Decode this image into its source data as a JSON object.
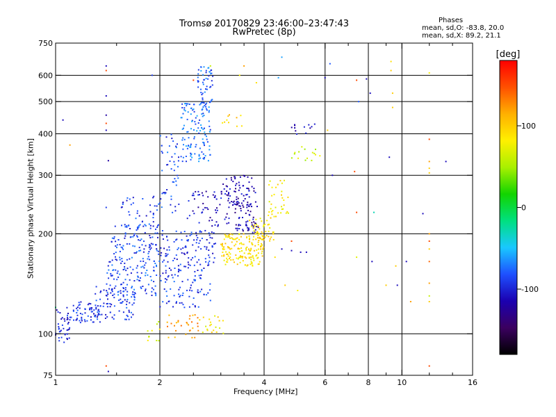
{
  "title": "Tromsø 20170829 23:46:00–23:47:43",
  "subtitle": "RwPretec (8p)",
  "phases": {
    "heading": "Phases",
    "o_line": "mean, sd,O: -83.8, 20.0",
    "x_line": "mean, sd,X:  89.2, 21.1"
  },
  "colorbar": {
    "label": "[deg]",
    "range": [
      -180,
      180
    ],
    "ticks": [
      {
        "value": 100,
        "label": "100"
      },
      {
        "value": 0,
        "label": "0"
      },
      {
        "value": -100,
        "label": "-100"
      }
    ],
    "stops": [
      "#000000",
      "#3b0060",
      "#1b00b0",
      "#1e50ff",
      "#19c8ff",
      "#00e080",
      "#12d400",
      "#a8f000",
      "#fff000",
      "#ffb000",
      "#ff5000",
      "#ff0000"
    ]
  },
  "chart_data": {
    "type": "scatter",
    "title": "Tromsø 20170829 23:46:00–23:47:43",
    "subtitle": "RwPretec (8p)",
    "xlabel": "Frequency [MHz]",
    "ylabel": "Stationary phase Virtual Height [km]",
    "xscale": "log",
    "yscale": "log",
    "xlim": [
      1,
      16
    ],
    "ylim": [
      75,
      750
    ],
    "xticks": [
      1,
      2,
      4,
      6,
      8,
      10,
      16
    ],
    "xtick_labels": [
      "1",
      "2",
      "4",
      "6",
      "8",
      "10",
      "16"
    ],
    "xminor": [
      1.5,
      2.5,
      3,
      3.5,
      5,
      7,
      9,
      12,
      14
    ],
    "yticks": [
      75,
      100,
      200,
      300,
      400,
      500,
      600,
      750
    ],
    "ytick_labels": [
      "75",
      "100",
      "200",
      "300",
      "400",
      "500",
      "600",
      "750"
    ],
    "grid_x": [
      2,
      4,
      6,
      8,
      10
    ],
    "grid_y": [
      100,
      200,
      300,
      400,
      500,
      600
    ],
    "color_axis": "phase [deg]",
    "clusters": [
      {
        "f": [
          1.0,
          1.1
        ],
        "h": [
          92,
          120
        ],
        "phase": -100,
        "n": 40
      },
      {
        "f": [
          1.1,
          1.35
        ],
        "h": [
          108,
          125
        ],
        "phase": -95,
        "n": 60
      },
      {
        "f": [
          1.3,
          1.7
        ],
        "h": [
          110,
          140
        ],
        "phase": -90,
        "n": 90
      },
      {
        "f": [
          1.4,
          2.0
        ],
        "h": [
          130,
          170
        ],
        "phase": -85,
        "n": 110
      },
      {
        "f": [
          1.45,
          2.0
        ],
        "h": [
          165,
          215
        ],
        "phase": -88,
        "n": 100
      },
      {
        "f": [
          1.55,
          2.0
        ],
        "h": [
          210,
          260
        ],
        "phase": -90,
        "n": 40
      },
      {
        "f": [
          2.0,
          2.8
        ],
        "h": [
          120,
          160
        ],
        "phase": -90,
        "n": 90
      },
      {
        "f": [
          2.0,
          2.9
        ],
        "h": [
          160,
          205
        ],
        "phase": -92,
        "n": 110
      },
      {
        "f": [
          2.0,
          2.3
        ],
        "h": [
          230,
          400
        ],
        "phase": -85,
        "n": 50
      },
      {
        "f": [
          2.3,
          2.8
        ],
        "h": [
          330,
          500
        ],
        "phase": -75,
        "n": 130
      },
      {
        "f": [
          2.55,
          2.85
        ],
        "h": [
          480,
          640
        ],
        "phase": -78,
        "n": 50
      },
      {
        "f": [
          2.4,
          3.2
        ],
        "h": [
          210,
          270
        ],
        "phase": -110,
        "n": 60
      },
      {
        "f": [
          3.0,
          3.8
        ],
        "h": [
          240,
          300
        ],
        "phase": -115,
        "n": 70
      },
      {
        "f": [
          3.3,
          3.85
        ],
        "h": [
          200,
          250
        ],
        "phase": -118,
        "n": 60
      },
      {
        "f": [
          3.0,
          4.0
        ],
        "h": [
          160,
          200
        ],
        "phase": 90,
        "n": 160
      },
      {
        "f": [
          3.6,
          4.3
        ],
        "h": [
          190,
          225
        ],
        "phase": 90,
        "n": 50
      },
      {
        "f": [
          4.1,
          4.7
        ],
        "h": [
          225,
          290
        ],
        "phase": 85,
        "n": 35
      },
      {
        "f": [
          2.1,
          2.6
        ],
        "h": [
          97,
          115
        ],
        "phase": 120,
        "n": 30
      },
      {
        "f": [
          2.6,
          3.1
        ],
        "h": [
          100,
          115
        ],
        "phase": 85,
        "n": 20
      },
      {
        "f": [
          1.8,
          2.0
        ],
        "h": [
          95,
          110
        ],
        "phase": 70,
        "n": 10
      },
      {
        "f": [
          3.0,
          3.5
        ],
        "h": [
          420,
          470
        ],
        "phase": 95,
        "n": 10
      },
      {
        "f": [
          4.8,
          5.8
        ],
        "h": [
          330,
          370
        ],
        "phase": 60,
        "n": 15
      },
      {
        "f": [
          4.8,
          5.6
        ],
        "h": [
          395,
          430
        ],
        "phase": -115,
        "n": 12
      }
    ],
    "points": [
      {
        "f": 1.4,
        "h": 620,
        "phase": 150
      },
      {
        "f": 1.4,
        "h": 640,
        "phase": -110
      },
      {
        "f": 1.4,
        "h": 520,
        "phase": -110
      },
      {
        "f": 1.4,
        "h": 455,
        "phase": -120
      },
      {
        "f": 1.4,
        "h": 430,
        "phase": 150
      },
      {
        "f": 1.4,
        "h": 410,
        "phase": -110
      },
      {
        "f": 1.42,
        "h": 332,
        "phase": -120
      },
      {
        "f": 1.4,
        "h": 240,
        "phase": -90
      },
      {
        "f": 1.4,
        "h": 80,
        "phase": 150
      },
      {
        "f": 1.42,
        "h": 77,
        "phase": -110
      },
      {
        "f": 1.55,
        "h": 240,
        "phase": -100
      },
      {
        "f": 4.5,
        "h": 680,
        "phase": -60
      },
      {
        "f": 6.2,
        "h": 650,
        "phase": -80
      },
      {
        "f": 6.0,
        "h": 590,
        "phase": -110
      },
      {
        "f": 7.4,
        "h": 580,
        "phase": 150
      },
      {
        "f": 7.5,
        "h": 500,
        "phase": -80
      },
      {
        "f": 7.9,
        "h": 585,
        "phase": -110
      },
      {
        "f": 8.1,
        "h": 530,
        "phase": -110
      },
      {
        "f": 9.3,
        "h": 660,
        "phase": 90
      },
      {
        "f": 9.3,
        "h": 620,
        "phase": 100
      },
      {
        "f": 9.4,
        "h": 530,
        "phase": 100
      },
      {
        "f": 9.4,
        "h": 480,
        "phase": 100
      },
      {
        "f": 9.2,
        "h": 340,
        "phase": -110
      },
      {
        "f": 7.3,
        "h": 308,
        "phase": 150
      },
      {
        "f": 7.4,
        "h": 232,
        "phase": 150
      },
      {
        "f": 8.3,
        "h": 232,
        "phase": -30
      },
      {
        "f": 7.4,
        "h": 170,
        "phase": 70
      },
      {
        "f": 8.2,
        "h": 165,
        "phase": -110
      },
      {
        "f": 9.6,
        "h": 160,
        "phase": 100
      },
      {
        "f": 10.3,
        "h": 165,
        "phase": -110
      },
      {
        "f": 9.0,
        "h": 140,
        "phase": 100
      },
      {
        "f": 9.7,
        "h": 140,
        "phase": -110
      },
      {
        "f": 10.6,
        "h": 125,
        "phase": 120
      },
      {
        "f": 12.0,
        "h": 610,
        "phase": 80
      },
      {
        "f": 12.0,
        "h": 385,
        "phase": 150
      },
      {
        "f": 12.0,
        "h": 330,
        "phase": 120
      },
      {
        "f": 12.0,
        "h": 315,
        "phase": 100
      },
      {
        "f": 12.0,
        "h": 305,
        "phase": 100
      },
      {
        "f": 13.4,
        "h": 330,
        "phase": -110
      },
      {
        "f": 11.5,
        "h": 230,
        "phase": -110
      },
      {
        "f": 12.0,
        "h": 200,
        "phase": 120
      },
      {
        "f": 12.0,
        "h": 190,
        "phase": 150
      },
      {
        "f": 12.0,
        "h": 180,
        "phase": 100
      },
      {
        "f": 12.0,
        "h": 165,
        "phase": 140
      },
      {
        "f": 12.0,
        "h": 142,
        "phase": 120
      },
      {
        "f": 12.0,
        "h": 130,
        "phase": 60
      },
      {
        "f": 12.0,
        "h": 125,
        "phase": 100
      },
      {
        "f": 12.0,
        "h": 80,
        "phase": 150
      },
      {
        "f": 6.1,
        "h": 410,
        "phase": 100
      },
      {
        "f": 6.3,
        "h": 300,
        "phase": -110
      },
      {
        "f": 4.5,
        "h": 180,
        "phase": -110
      },
      {
        "f": 4.8,
        "h": 178,
        "phase": -110
      },
      {
        "f": 5.1,
        "h": 176,
        "phase": -110
      },
      {
        "f": 5.3,
        "h": 176,
        "phase": -110
      },
      {
        "f": 4.8,
        "h": 190,
        "phase": 150
      },
      {
        "f": 4.3,
        "h": 170,
        "phase": 90
      },
      {
        "f": 4.6,
        "h": 140,
        "phase": 100
      },
      {
        "f": 5.0,
        "h": 135,
        "phase": 80
      },
      {
        "f": 2.8,
        "h": 640,
        "phase": 60
      },
      {
        "f": 3.5,
        "h": 640,
        "phase": 120
      },
      {
        "f": 3.4,
        "h": 600,
        "phase": 80
      },
      {
        "f": 2.5,
        "h": 580,
        "phase": 150
      },
      {
        "f": 3.8,
        "h": 570,
        "phase": 90
      },
      {
        "f": 4.4,
        "h": 590,
        "phase": -60
      },
      {
        "f": 1.9,
        "h": 600,
        "phase": -90
      },
      {
        "f": 1.0,
        "h": 120,
        "phase": -20
      },
      {
        "f": 1.02,
        "h": 105,
        "phase": -100
      },
      {
        "f": 1.05,
        "h": 440,
        "phase": -110
      },
      {
        "f": 1.1,
        "h": 370,
        "phase": 120
      }
    ]
  }
}
